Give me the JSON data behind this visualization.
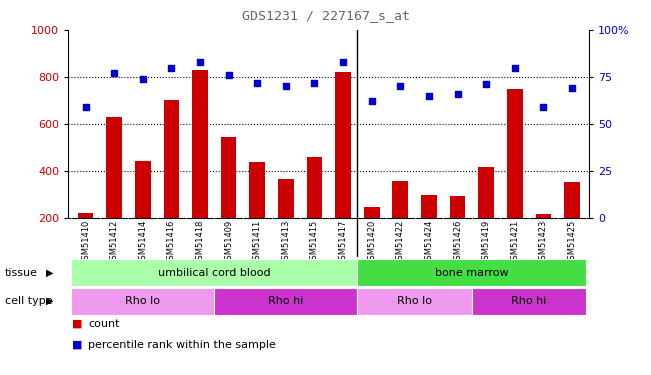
{
  "title": "GDS1231 / 227167_s_at",
  "samples": [
    "GSM51410",
    "GSM51412",
    "GSM51414",
    "GSM51416",
    "GSM51418",
    "GSM51409",
    "GSM51411",
    "GSM51413",
    "GSM51415",
    "GSM51417",
    "GSM51420",
    "GSM51422",
    "GSM51424",
    "GSM51426",
    "GSM51419",
    "GSM51421",
    "GSM51423",
    "GSM51425"
  ],
  "counts": [
    220,
    630,
    440,
    700,
    830,
    545,
    435,
    365,
    460,
    820,
    245,
    355,
    295,
    290,
    415,
    750,
    215,
    350
  ],
  "percentiles": [
    59,
    77,
    74,
    80,
    83,
    76,
    72,
    70,
    72,
    83,
    62,
    70,
    65,
    66,
    71,
    80,
    59,
    69
  ],
  "ylim_left": [
    200,
    1000
  ],
  "ylim_right": [
    0,
    100
  ],
  "yticks_left": [
    200,
    400,
    600,
    800,
    1000
  ],
  "yticks_right": [
    0,
    25,
    50,
    75,
    100
  ],
  "ytick_labels_right": [
    "0",
    "25",
    "50",
    "75",
    "100%"
  ],
  "bar_color": "#cc0000",
  "scatter_color": "#0000cc",
  "grid_color": "#000000",
  "tissue_groups": [
    {
      "label": "umbilical cord blood",
      "start": 0,
      "end": 9,
      "color": "#aaffaa"
    },
    {
      "label": "bone marrow",
      "start": 10,
      "end": 17,
      "color": "#44dd44"
    }
  ],
  "cell_type_groups": [
    {
      "label": "Rho lo",
      "start": 0,
      "end": 4,
      "color": "#ee99ee"
    },
    {
      "label": "Rho hi",
      "start": 5,
      "end": 9,
      "color": "#cc33cc"
    },
    {
      "label": "Rho lo",
      "start": 10,
      "end": 13,
      "color": "#ee99ee"
    },
    {
      "label": "Rho hi",
      "start": 14,
      "end": 17,
      "color": "#cc33cc"
    }
  ],
  "separator_after_idx": 9,
  "tissue_label": "tissue",
  "cell_type_label": "cell type",
  "legend_count_label": "count",
  "legend_percentile_label": "percentile rank within the sample",
  "background_color": "#ffffff",
  "plot_bg_color": "#ffffff",
  "xtick_bg_color": "#cccccc"
}
